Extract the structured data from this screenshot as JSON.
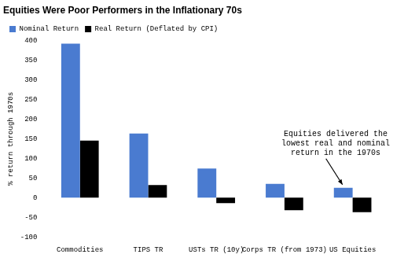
{
  "chart_data": {
    "type": "bar",
    "title": "Equities Were Poor Performers in the Inflationary 70s",
    "y_label": "% return through 1970s",
    "categories": [
      "Commodities",
      "TIPS TR",
      "USTs TR (10y)",
      "Corps TR (from 1973)",
      "US Equities"
    ],
    "series": [
      {
        "name": "Nominal Return",
        "color": "#4a7bd0",
        "values": [
          392,
          163,
          74,
          35,
          25
        ]
      },
      {
        "name": "Real Return (Deflated by CPI)",
        "color": "#000000",
        "values": [
          145,
          32,
          -14,
          -32,
          -37
        ]
      }
    ],
    "ylim": [
      -100,
      400
    ],
    "yticks": [
      -100,
      -50,
      0,
      50,
      100,
      150,
      200,
      250,
      300,
      350,
      400
    ],
    "grid": false,
    "legend": "top-left",
    "annotations": [
      {
        "text": [
          "Equities delivered the",
          "lowest real and nominal",
          "return in the 1970s"
        ],
        "category": "US Equities"
      }
    ]
  }
}
